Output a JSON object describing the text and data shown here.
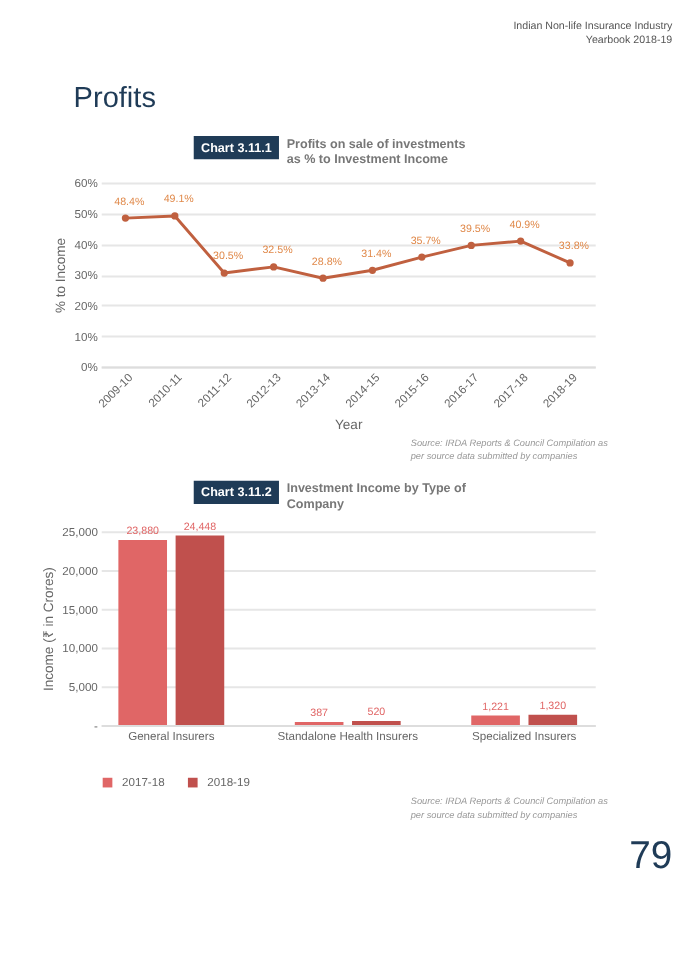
{
  "chart_data": [
    {
      "type": "line",
      "title": "Profits on sale of investments as % to Investment Income",
      "subtitle": "Chart 3.11.1",
      "xlabel": "Year",
      "ylabel": "% to Income",
      "categories": [
        "2009-10",
        "2010-11",
        "2011-12",
        "2012-13",
        "2013-14",
        "2014-15",
        "2015-16",
        "2016-17",
        "2017-18",
        "2018-19"
      ],
      "series": [
        {
          "color": "#c0603f",
          "values": [
            48.4,
            49.1,
            30.5,
            32.5,
            28.8,
            31.4,
            35.7,
            39.5,
            40.9,
            33.8
          ],
          "value_labels": [
            "48.4%",
            "49.1%",
            "30.5%",
            "32.5%",
            "28.8%",
            "31.4%",
            "35.7%",
            "39.5%",
            "40.9%",
            "33.8%"
          ]
        }
      ],
      "ylim": [
        0,
        60
      ],
      "yticks": [
        {
          "value": 0,
          "label": "0%"
        },
        {
          "value": 10,
          "label": "10%"
        },
        {
          "value": 20,
          "label": "20%"
        },
        {
          "value": 30,
          "label": "30%"
        },
        {
          "value": 40,
          "label": "40%"
        },
        {
          "value": 50,
          "label": "50%"
        },
        {
          "value": 60,
          "label": "60%"
        }
      ],
      "grid": "y",
      "marker": "circle",
      "line_style": "solid",
      "legend": false,
      "annotations": [
        "Indian Non-life Insurance Industry",
        "Yearbook 2018-19",
        "Profits",
        "Source: IRDA Reports & Council Compilation as per source data submitted by companies"
      ]
    },
    {
      "type": "bar",
      "title": "Investment Income by Type of Company",
      "subtitle": "Chart 3.11.2",
      "ylabel": "Income (₹ in Crores)",
      "categories": [
        "General Insurers",
        "Standalone Health Insurers",
        "Specialized Insurers"
      ],
      "series": [
        {
          "name": "2017-18",
          "color": "#e06666",
          "values": [
            23880,
            387,
            1221
          ],
          "value_labels": [
            "23,880",
            "387",
            "1,221"
          ]
        },
        {
          "name": "2018-19",
          "color": "#c0504d",
          "values": [
            24448,
            520,
            1320
          ],
          "value_labels": [
            "24,448",
            "520",
            "1,320"
          ]
        }
      ],
      "ylim": [
        0,
        25000
      ],
      "yticks": [
        {
          "value": 0,
          "label": "-"
        },
        {
          "value": 5000,
          "label": "5,000"
        },
        {
          "value": 10000,
          "label": "10,000"
        },
        {
          "value": 15000,
          "label": "15,000"
        },
        {
          "value": 20000,
          "label": "20,000"
        },
        {
          "value": 25000,
          "label": "25,000"
        }
      ],
      "grid": "y",
      "legend": "bottom",
      "annotations": [
        "Source: IRDA Reports & Council Compilation as per source data submitted by companies",
        "79"
      ]
    }
  ]
}
